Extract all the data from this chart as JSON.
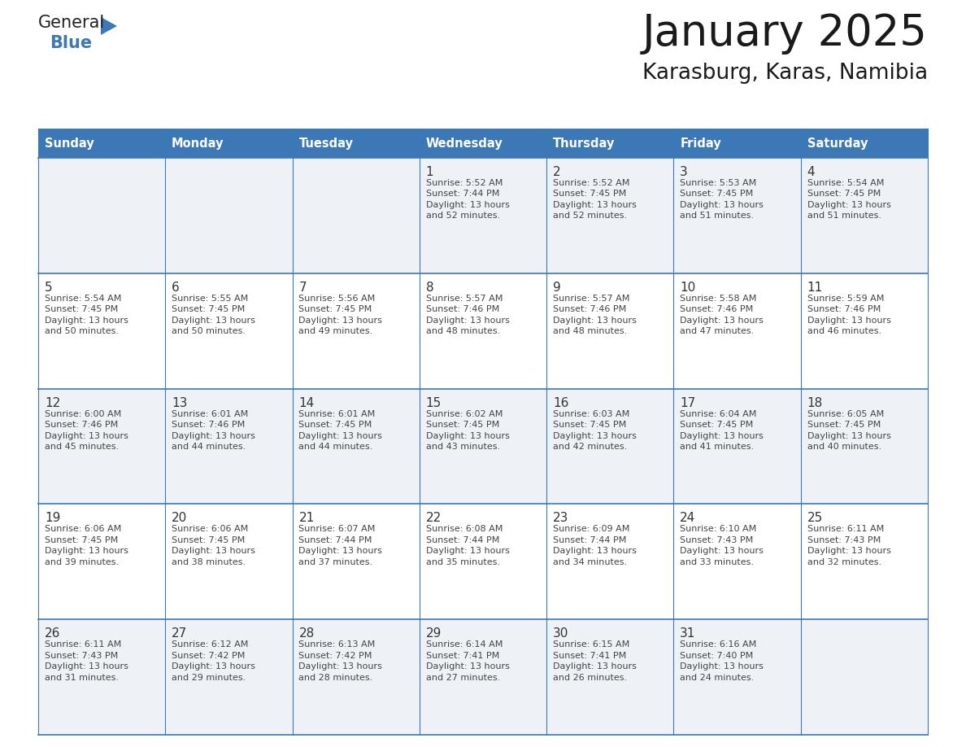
{
  "title": "January 2025",
  "subtitle": "Karasburg, Karas, Namibia",
  "days_of_week": [
    "Sunday",
    "Monday",
    "Tuesday",
    "Wednesday",
    "Thursday",
    "Friday",
    "Saturday"
  ],
  "header_bg": "#3b78b5",
  "header_text": "#ffffff",
  "row_bg_odd": "#eef2f7",
  "row_bg_even": "#ffffff",
  "border_color": "#3b78b5",
  "day_number_color": "#333333",
  "cell_text_color": "#444444",
  "title_color": "#1a1a1a",
  "subtitle_color": "#1a1a1a",
  "black_text": "#1a1a1a",
  "blue_color": "#3b78b5",
  "calendar_data": [
    [
      null,
      null,
      null,
      {
        "day": 1,
        "sunrise": "5:52 AM",
        "sunset": "7:44 PM",
        "daylight_h": "13 hours",
        "daylight_m": "and 52 minutes."
      },
      {
        "day": 2,
        "sunrise": "5:52 AM",
        "sunset": "7:45 PM",
        "daylight_h": "13 hours",
        "daylight_m": "and 52 minutes."
      },
      {
        "day": 3,
        "sunrise": "5:53 AM",
        "sunset": "7:45 PM",
        "daylight_h": "13 hours",
        "daylight_m": "and 51 minutes."
      },
      {
        "day": 4,
        "sunrise": "5:54 AM",
        "sunset": "7:45 PM",
        "daylight_h": "13 hours",
        "daylight_m": "and 51 minutes."
      }
    ],
    [
      {
        "day": 5,
        "sunrise": "5:54 AM",
        "sunset": "7:45 PM",
        "daylight_h": "13 hours",
        "daylight_m": "and 50 minutes."
      },
      {
        "day": 6,
        "sunrise": "5:55 AM",
        "sunset": "7:45 PM",
        "daylight_h": "13 hours",
        "daylight_m": "and 50 minutes."
      },
      {
        "day": 7,
        "sunrise": "5:56 AM",
        "sunset": "7:45 PM",
        "daylight_h": "13 hours",
        "daylight_m": "and 49 minutes."
      },
      {
        "day": 8,
        "sunrise": "5:57 AM",
        "sunset": "7:46 PM",
        "daylight_h": "13 hours",
        "daylight_m": "and 48 minutes."
      },
      {
        "day": 9,
        "sunrise": "5:57 AM",
        "sunset": "7:46 PM",
        "daylight_h": "13 hours",
        "daylight_m": "and 48 minutes."
      },
      {
        "day": 10,
        "sunrise": "5:58 AM",
        "sunset": "7:46 PM",
        "daylight_h": "13 hours",
        "daylight_m": "and 47 minutes."
      },
      {
        "day": 11,
        "sunrise": "5:59 AM",
        "sunset": "7:46 PM",
        "daylight_h": "13 hours",
        "daylight_m": "and 46 minutes."
      }
    ],
    [
      {
        "day": 12,
        "sunrise": "6:00 AM",
        "sunset": "7:46 PM",
        "daylight_h": "13 hours",
        "daylight_m": "and 45 minutes."
      },
      {
        "day": 13,
        "sunrise": "6:01 AM",
        "sunset": "7:46 PM",
        "daylight_h": "13 hours",
        "daylight_m": "and 44 minutes."
      },
      {
        "day": 14,
        "sunrise": "6:01 AM",
        "sunset": "7:45 PM",
        "daylight_h": "13 hours",
        "daylight_m": "and 44 minutes."
      },
      {
        "day": 15,
        "sunrise": "6:02 AM",
        "sunset": "7:45 PM",
        "daylight_h": "13 hours",
        "daylight_m": "and 43 minutes."
      },
      {
        "day": 16,
        "sunrise": "6:03 AM",
        "sunset": "7:45 PM",
        "daylight_h": "13 hours",
        "daylight_m": "and 42 minutes."
      },
      {
        "day": 17,
        "sunrise": "6:04 AM",
        "sunset": "7:45 PM",
        "daylight_h": "13 hours",
        "daylight_m": "and 41 minutes."
      },
      {
        "day": 18,
        "sunrise": "6:05 AM",
        "sunset": "7:45 PM",
        "daylight_h": "13 hours",
        "daylight_m": "and 40 minutes."
      }
    ],
    [
      {
        "day": 19,
        "sunrise": "6:06 AM",
        "sunset": "7:45 PM",
        "daylight_h": "13 hours",
        "daylight_m": "and 39 minutes."
      },
      {
        "day": 20,
        "sunrise": "6:06 AM",
        "sunset": "7:45 PM",
        "daylight_h": "13 hours",
        "daylight_m": "and 38 minutes."
      },
      {
        "day": 21,
        "sunrise": "6:07 AM",
        "sunset": "7:44 PM",
        "daylight_h": "13 hours",
        "daylight_m": "and 37 minutes."
      },
      {
        "day": 22,
        "sunrise": "6:08 AM",
        "sunset": "7:44 PM",
        "daylight_h": "13 hours",
        "daylight_m": "and 35 minutes."
      },
      {
        "day": 23,
        "sunrise": "6:09 AM",
        "sunset": "7:44 PM",
        "daylight_h": "13 hours",
        "daylight_m": "and 34 minutes."
      },
      {
        "day": 24,
        "sunrise": "6:10 AM",
        "sunset": "7:43 PM",
        "daylight_h": "13 hours",
        "daylight_m": "and 33 minutes."
      },
      {
        "day": 25,
        "sunrise": "6:11 AM",
        "sunset": "7:43 PM",
        "daylight_h": "13 hours",
        "daylight_m": "and 32 minutes."
      }
    ],
    [
      {
        "day": 26,
        "sunrise": "6:11 AM",
        "sunset": "7:43 PM",
        "daylight_h": "13 hours",
        "daylight_m": "and 31 minutes."
      },
      {
        "day": 27,
        "sunrise": "6:12 AM",
        "sunset": "7:42 PM",
        "daylight_h": "13 hours",
        "daylight_m": "and 29 minutes."
      },
      {
        "day": 28,
        "sunrise": "6:13 AM",
        "sunset": "7:42 PM",
        "daylight_h": "13 hours",
        "daylight_m": "and 28 minutes."
      },
      {
        "day": 29,
        "sunrise": "6:14 AM",
        "sunset": "7:41 PM",
        "daylight_h": "13 hours",
        "daylight_m": "and 27 minutes."
      },
      {
        "day": 30,
        "sunrise": "6:15 AM",
        "sunset": "7:41 PM",
        "daylight_h": "13 hours",
        "daylight_m": "and 26 minutes."
      },
      {
        "day": 31,
        "sunrise": "6:16 AM",
        "sunset": "7:40 PM",
        "daylight_h": "13 hours",
        "daylight_m": "and 24 minutes."
      },
      null
    ]
  ]
}
